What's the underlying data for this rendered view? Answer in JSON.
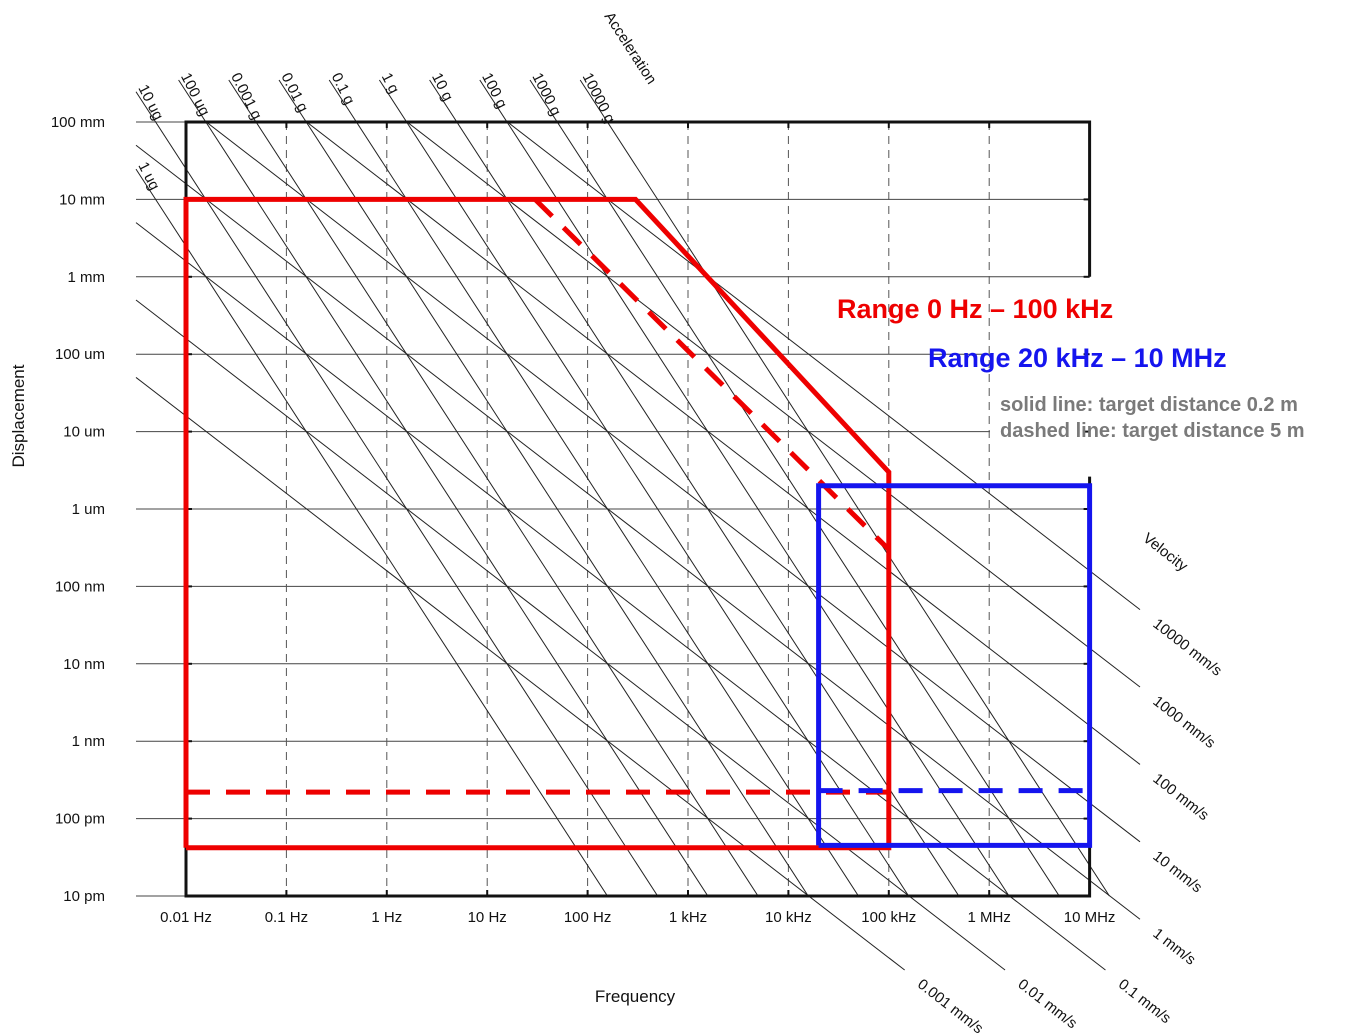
{
  "chart_data": {
    "type": "line",
    "subtype": "vibration nomograph (log-log)",
    "xlabel": "Frequency",
    "ylabel": "Displacement",
    "x_scale": "log",
    "y_scale": "log",
    "xlim_hz": [
      0.01,
      10000000
    ],
    "ylim_m": [
      1e-11,
      0.1
    ],
    "x_ticks": [
      {
        "value": 0.01,
        "label": "0.01 Hz"
      },
      {
        "value": 0.1,
        "label": "0.1 Hz"
      },
      {
        "value": 1,
        "label": "1 Hz"
      },
      {
        "value": 10,
        "label": "10 Hz"
      },
      {
        "value": 100,
        "label": "100 Hz"
      },
      {
        "value": 1000,
        "label": "1 kHz"
      },
      {
        "value": 10000,
        "label": "10 kHz"
      },
      {
        "value": 100000,
        "label": "100 kHz"
      },
      {
        "value": 1000000,
        "label": "1 MHz"
      },
      {
        "value": 10000000,
        "label": "10 MHz"
      }
    ],
    "y_ticks": [
      {
        "value": 0.1,
        "label": "100 mm"
      },
      {
        "value": 0.01,
        "label": "10 mm"
      },
      {
        "value": 0.001,
        "label": "1 mm"
      },
      {
        "value": 0.0001,
        "label": "100 um"
      },
      {
        "value": 1e-05,
        "label": "10 um"
      },
      {
        "value": 1e-06,
        "label": "1 um"
      },
      {
        "value": 1e-07,
        "label": "100 nm"
      },
      {
        "value": 1e-08,
        "label": "10 nm"
      },
      {
        "value": 1e-09,
        "label": "1 nm"
      },
      {
        "value": 1e-10,
        "label": "100 pm"
      },
      {
        "value": 1e-11,
        "label": "10 pm"
      }
    ],
    "acceleration_title": "Acceleration",
    "acceleration_lines": [
      {
        "value": 1,
        "label": "1 ug"
      },
      {
        "value": 10,
        "label": "10 ug"
      },
      {
        "value": 100,
        "label": "100 ug"
      },
      {
        "value": 1000,
        "label": "0.001 g"
      },
      {
        "value": 10000,
        "label": "0.01 g"
      },
      {
        "value": 100000,
        "label": "0.1 g"
      },
      {
        "value": 1000000,
        "label": "1 g"
      },
      {
        "value": 10000000,
        "label": "10 g"
      },
      {
        "value": 100000000,
        "label": "100 g"
      },
      {
        "value": 1000000000,
        "label": "1000 g"
      },
      {
        "value": 10000000000,
        "label": "10000 g"
      }
    ],
    "velocity_title": "Velocity",
    "velocity_lines": [
      {
        "value": 0.001,
        "label": "0.001 mm/s"
      },
      {
        "value": 0.01,
        "label": "0.01 mm/s"
      },
      {
        "value": 0.1,
        "label": "0.1 mm/s"
      },
      {
        "value": 1,
        "label": "1 mm/s"
      },
      {
        "value": 10,
        "label": "10 mm/s"
      },
      {
        "value": 100,
        "label": "100 mm/s"
      },
      {
        "value": 1000,
        "label": "1000 mm/s"
      },
      {
        "value": 10000,
        "label": "10000 mm/s"
      }
    ],
    "series": [
      {
        "name": "Range 0 Hz – 100 kHz",
        "color": "#ee0000",
        "style": "solid",
        "points_hz_m": [
          [
            0.01,
            4.2e-11
          ],
          [
            0.01,
            0.01
          ],
          [
            300,
            0.01
          ],
          [
            100000,
            3e-06
          ],
          [
            100000,
            4.2e-11
          ],
          [
            0.01,
            4.2e-11
          ]
        ]
      },
      {
        "name": "Range 0 Hz – 100 kHz",
        "color": "#ee0000",
        "style": "dashed",
        "points_hz_m": [
          [
            0.01,
            2.2e-10
          ],
          [
            100000,
            2.2e-10
          ]
        ]
      },
      {
        "name": "Range 0 Hz – 100 kHz",
        "color": "#ee0000",
        "style": "dashed",
        "points_hz_m": [
          [
            30,
            0.01
          ],
          [
            100000,
            3e-07
          ]
        ]
      },
      {
        "name": "Range 20 kHz – 10 MHz",
        "color": "#1515ee",
        "style": "solid",
        "points_hz_m": [
          [
            20000,
            4.5e-11
          ],
          [
            20000,
            2e-06
          ],
          [
            10000000,
            2e-06
          ],
          [
            10000000,
            4.5e-11
          ],
          [
            20000,
            4.5e-11
          ]
        ]
      },
      {
        "name": "Range 20 kHz – 10 MHz",
        "color": "#1515ee",
        "style": "dashed",
        "points_hz_m": [
          [
            20000,
            2.3e-10
          ],
          [
            10000000,
            2.3e-10
          ]
        ]
      }
    ],
    "legend": {
      "red_label": "Range 0 Hz – 100 kHz",
      "blue_label": "Range 20 kHz – 10 MHz",
      "note_solid": "solid line: target distance 0.2 m",
      "note_dashed": "dashed line: target distance 5 m",
      "placement": "right, center"
    },
    "grid": true,
    "colors": {
      "red": "#ee0000",
      "blue": "#1515ee",
      "frame": "#111111",
      "grid": "#444444",
      "note": "#7a7a7a"
    }
  }
}
